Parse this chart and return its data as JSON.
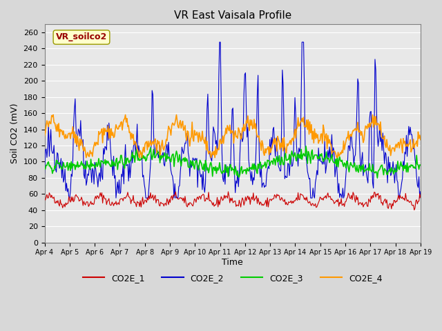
{
  "title": "VR East Vaisala Profile",
  "xlabel": "Time",
  "ylabel": "Soil CO2 (mV)",
  "annotation": "VR_soilco2",
  "ylim": [
    0,
    270
  ],
  "yticks": [
    0,
    20,
    40,
    60,
    80,
    100,
    120,
    140,
    160,
    180,
    200,
    220,
    240,
    260
  ],
  "xtick_labels": [
    "Apr 4",
    "Apr 5",
    "Apr 6",
    "Apr 7",
    "Apr 8",
    "Apr 9",
    "Apr 10",
    "Apr 11",
    "Apr 12",
    "Apr 13",
    "Apr 14",
    "Apr 15",
    "Apr 16",
    "Apr 17",
    "Apr 18",
    "Apr 19"
  ],
  "line_colors": {
    "CO2E_1": "#cc0000",
    "CO2E_2": "#0000cc",
    "CO2E_3": "#00cc00",
    "CO2E_4": "#ff9900"
  },
  "legend_labels": [
    "CO2E_1",
    "CO2E_2",
    "CO2E_3",
    "CO2E_4"
  ]
}
